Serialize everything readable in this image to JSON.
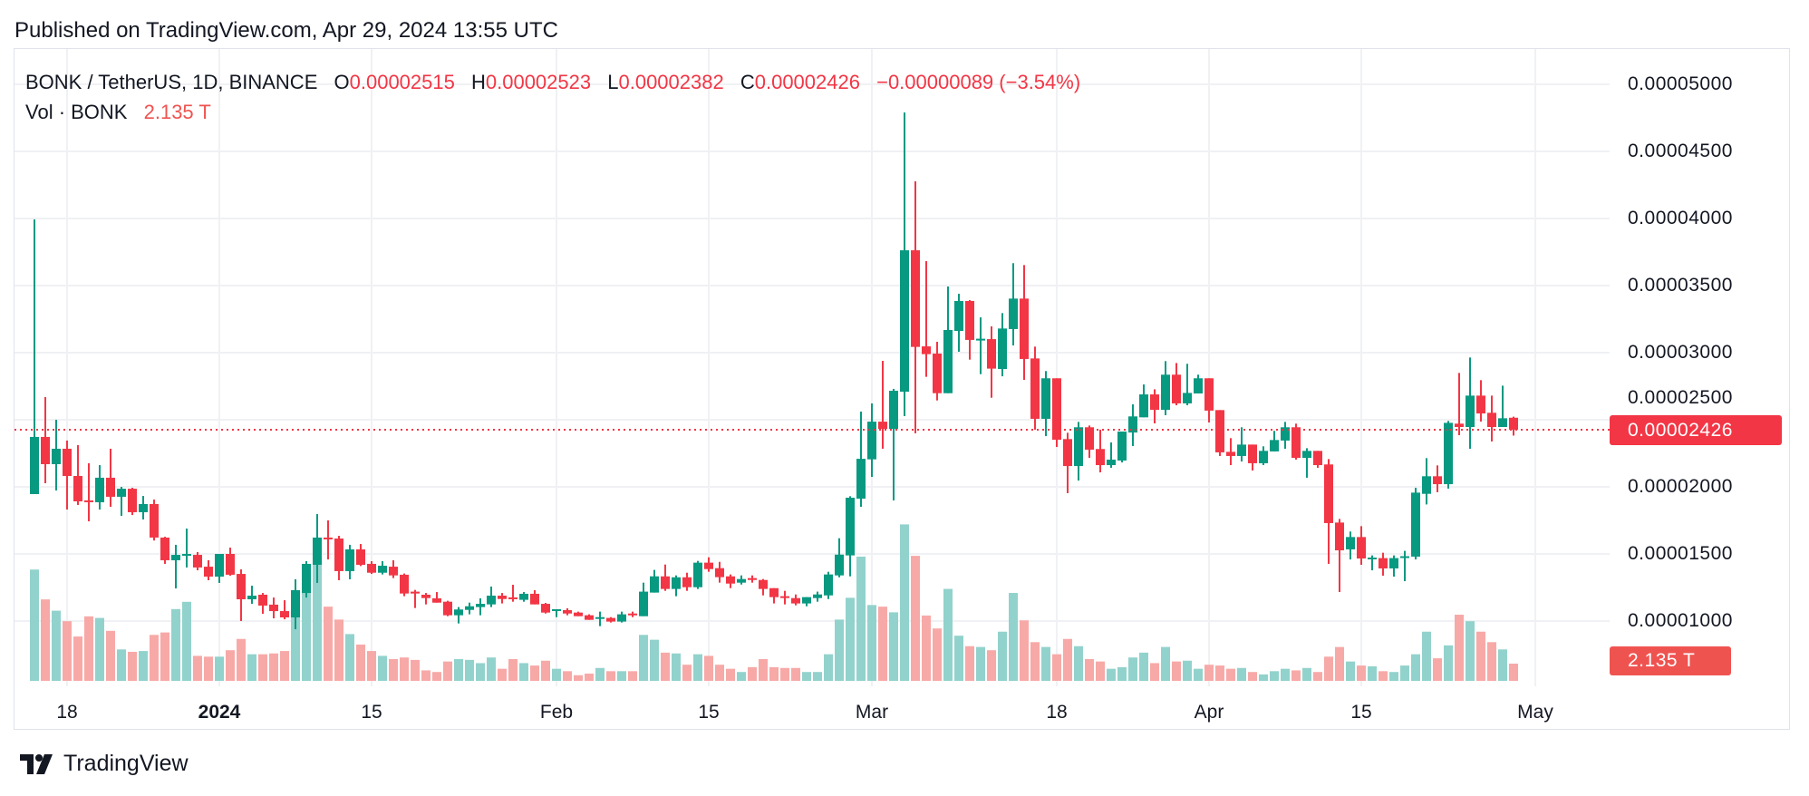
{
  "header": {
    "published": "Published on TradingView.com, Apr 29, 2024 13:55 UTC"
  },
  "legend": {
    "symbol": "BONK / TetherUS, 1D, BINANCE",
    "o_label": "O",
    "o_value": "0.00002515",
    "h_label": "H",
    "h_value": "0.00002523",
    "l_label": "L",
    "l_value": "0.00002382",
    "c_label": "C",
    "c_value": "0.00002426",
    "change": "−0.00000089 (−3.54%)",
    "vol_label": "Vol · BONK",
    "vol_value": "2.135 T"
  },
  "price_axis": {
    "labels": [
      "0.00005000",
      "0.00004500",
      "0.00004000",
      "0.00003500",
      "0.00003000",
      "0.00002500",
      "0.00002000",
      "0.00001500",
      "0.00001000"
    ],
    "last_price": "0.00002426",
    "last_volume": "2.135 T"
  },
  "time_axis": {
    "labels": [
      "18",
      "2024",
      "15",
      "Feb",
      "15",
      "Mar",
      "18",
      "Apr",
      "15",
      "May"
    ]
  },
  "footer": {
    "brand": "TradingView",
    "logo_icon": "tradingview-logo-icon"
  },
  "colors": {
    "up": "#089981",
    "down": "#F23645",
    "vol_up": "#92D2CC",
    "vol_down": "#F7A9A7",
    "grid": "#F0F1F4"
  },
  "chart_data": {
    "type": "candlestick",
    "interval": "1D",
    "symbol": "BONK / TetherUS",
    "exchange": "BINANCE",
    "ylim": [
      8.8e-06,
      5.25e-05
    ],
    "yticks": [
      1e-05,
      1.5e-05,
      2e-05,
      2.5e-05,
      3e-05,
      3.5e-05,
      4e-05,
      4.5e-05,
      5e-05
    ],
    "grid": true,
    "last_price": 2.426e-05,
    "volume_unit": "T",
    "dates": [
      "2023-12-15",
      "2023-12-16",
      "2023-12-17",
      "2023-12-18",
      "2023-12-19",
      "2023-12-20",
      "2023-12-21",
      "2023-12-22",
      "2023-12-23",
      "2023-12-24",
      "2023-12-25",
      "2023-12-26",
      "2023-12-27",
      "2023-12-28",
      "2023-12-29",
      "2023-12-30",
      "2023-12-31",
      "2024-01-01",
      "2024-01-02",
      "2024-01-03",
      "2024-01-04",
      "2024-01-05",
      "2024-01-06",
      "2024-01-07",
      "2024-01-08",
      "2024-01-09",
      "2024-01-10",
      "2024-01-11",
      "2024-01-12",
      "2024-01-13",
      "2024-01-14",
      "2024-01-15",
      "2024-01-16",
      "2024-01-17",
      "2024-01-18",
      "2024-01-19",
      "2024-01-20",
      "2024-01-21",
      "2024-01-22",
      "2024-01-23",
      "2024-01-24",
      "2024-01-25",
      "2024-01-26",
      "2024-01-27",
      "2024-01-28",
      "2024-01-29",
      "2024-01-30",
      "2024-01-31",
      "2024-02-01",
      "2024-02-02",
      "2024-02-03",
      "2024-02-04",
      "2024-02-05",
      "2024-02-06",
      "2024-02-07",
      "2024-02-08",
      "2024-02-09",
      "2024-02-10",
      "2024-02-11",
      "2024-02-12",
      "2024-02-13",
      "2024-02-14",
      "2024-02-15",
      "2024-02-16",
      "2024-02-17",
      "2024-02-18",
      "2024-02-19",
      "2024-02-20",
      "2024-02-21",
      "2024-02-22",
      "2024-02-23",
      "2024-02-24",
      "2024-02-25",
      "2024-02-26",
      "2024-02-27",
      "2024-02-28",
      "2024-02-29",
      "2024-03-01",
      "2024-03-02",
      "2024-03-03",
      "2024-03-04",
      "2024-03-05",
      "2024-03-06",
      "2024-03-07",
      "2024-03-08",
      "2024-03-09",
      "2024-03-10",
      "2024-03-11",
      "2024-03-12",
      "2024-03-13",
      "2024-03-14",
      "2024-03-15",
      "2024-03-16",
      "2024-03-17",
      "2024-03-18",
      "2024-03-19",
      "2024-03-20",
      "2024-03-21",
      "2024-03-22",
      "2024-03-23",
      "2024-03-24",
      "2024-03-25",
      "2024-03-26",
      "2024-03-27",
      "2024-03-28",
      "2024-03-29",
      "2024-03-30",
      "2024-03-31",
      "2024-04-01",
      "2024-04-02",
      "2024-04-03",
      "2024-04-04",
      "2024-04-05",
      "2024-04-06",
      "2024-04-07",
      "2024-04-08",
      "2024-04-09",
      "2024-04-10",
      "2024-04-11",
      "2024-04-12",
      "2024-04-13",
      "2024-04-14",
      "2024-04-15",
      "2024-04-16",
      "2024-04-17",
      "2024-04-18",
      "2024-04-19",
      "2024-04-20",
      "2024-04-21",
      "2024-04-22",
      "2024-04-23",
      "2024-04-24",
      "2024-04-25",
      "2024-04-26",
      "2024-04-27",
      "2024-04-28",
      "2024-04-29"
    ],
    "ohlc": [
      [
        1.946e-05,
        3.993e-05,
        1.946e-05,
        2.372e-05
      ],
      [
        2.372e-05,
        2.669e-05,
        2.027e-05,
        2.169e-05
      ],
      [
        2.169e-05,
        2.5e-05,
        1.973e-05,
        2.284e-05
      ],
      [
        2.284e-05,
        2.345e-05,
        1.831e-05,
        2.081e-05
      ],
      [
        2.081e-05,
        2.311e-05,
        1.865e-05,
        1.892e-05
      ],
      [
        1.899e-05,
        2.176e-05,
        1.743e-05,
        1.892e-05
      ],
      [
        1.885e-05,
        2.162e-05,
        1.831e-05,
        2.068e-05
      ],
      [
        2.068e-05,
        2.284e-05,
        1.851e-05,
        1.926e-05
      ],
      [
        1.926e-05,
        2e-05,
        1.784e-05,
        1.986e-05
      ],
      [
        1.986e-05,
        1.993e-05,
        1.79e-05,
        1.811e-05
      ],
      [
        1.811e-05,
        1.932e-05,
        1.757e-05,
        1.872e-05
      ],
      [
        1.872e-05,
        1.905e-05,
        1.6e-05,
        1.622e-05
      ],
      [
        1.622e-05,
        1.628e-05,
        1.426e-05,
        1.453e-05
      ],
      [
        1.453e-05,
        1.568e-05,
        1.243e-05,
        1.493e-05
      ],
      [
        1.493e-05,
        1.689e-05,
        1.399e-05,
        1.5e-05
      ],
      [
        1.493e-05,
        1.514e-05,
        1.378e-05,
        1.399e-05
      ],
      [
        1.405e-05,
        1.453e-05,
        1.304e-05,
        1.331e-05
      ],
      [
        1.331e-05,
        1.5e-05,
        1.284e-05,
        1.5e-05
      ],
      [
        1.5e-05,
        1.547e-05,
        1.338e-05,
        1.345e-05
      ],
      [
        1.351e-05,
        1.385e-05,
        1e-05,
        1.162e-05
      ],
      [
        1.162e-05,
        1.263e-05,
        1.128e-05,
        1.189e-05
      ],
      [
        1.196e-05,
        1.209e-05,
        1.054e-05,
        1.115e-05
      ],
      [
        1.122e-05,
        1.175e-05,
        1.02e-05,
        1.074e-05
      ],
      [
        1.074e-05,
        1.155e-05,
        1.013e-05,
        1.027e-05
      ],
      [
        1.027e-05,
        1.311e-05,
        9.39e-06,
        1.23e-05
      ],
      [
        1.209e-05,
        1.446e-05,
        1.175e-05,
        1.426e-05
      ],
      [
        1.419e-05,
        1.797e-05,
        1.284e-05,
        1.622e-05
      ],
      [
        1.622e-05,
        1.75e-05,
        1.459e-05,
        1.615e-05
      ],
      [
        1.615e-05,
        1.635e-05,
        1.304e-05,
        1.372e-05
      ],
      [
        1.372e-05,
        1.568e-05,
        1.311e-05,
        1.534e-05
      ],
      [
        1.534e-05,
        1.574e-05,
        1.41e-05,
        1.419e-05
      ],
      [
        1.426e-05,
        1.446e-05,
        1.351e-05,
        1.36e-05
      ],
      [
        1.36e-05,
        1.446e-05,
        1.347e-05,
        1.412e-05
      ],
      [
        1.405e-05,
        1.453e-05,
        1.32e-05,
        1.34e-05
      ],
      [
        1.345e-05,
        1.354e-05,
        1.185e-05,
        1.205e-05
      ],
      [
        1.219e-05,
        1.232e-05,
        1.097e-05,
        1.205e-05
      ],
      [
        1.196e-05,
        1.209e-05,
        1.124e-05,
        1.171e-05
      ],
      [
        1.169e-05,
        1.216e-05,
        1.137e-05,
        1.137e-05
      ],
      [
        1.144e-05,
        1.151e-05,
        1.036e-05,
        1.043e-05
      ],
      [
        1.043e-05,
        1.104e-05,
        9.82e-06,
        1.086e-05
      ],
      [
        1.083e-05,
        1.137e-05,
        1.05e-05,
        1.11e-05
      ],
      [
        1.104e-05,
        1.169e-05,
        1.043e-05,
        1.128e-05
      ],
      [
        1.124e-05,
        1.257e-05,
        1.104e-05,
        1.189e-05
      ],
      [
        1.189e-05,
        1.209e-05,
        1.131e-05,
        1.164e-05
      ],
      [
        1.176e-05,
        1.27e-05,
        1.144e-05,
        1.164e-05
      ],
      [
        1.158e-05,
        1.216e-05,
        1.144e-05,
        1.203e-05
      ],
      [
        1.203e-05,
        1.23e-05,
        1.124e-05,
        1.124e-05
      ],
      [
        1.128e-05,
        1.135e-05,
        1.056e-05,
        1.063e-05
      ],
      [
        1.079e-05,
        1.088e-05,
        1.029e-05,
        1.088e-05
      ],
      [
        1.081e-05,
        1.095e-05,
        1.043e-05,
        1.056e-05
      ],
      [
        1.063e-05,
        1.07e-05,
        1.036e-05,
        1.036e-05
      ],
      [
        1.043e-05,
        1.05e-05,
        1.009e-05,
        1.009e-05
      ],
      [
        1.023e-05,
        1.07e-05,
        9.62e-06,
        1.029e-05
      ],
      [
        1.023e-05,
        1.029e-05,
        9.89e-06,
        9.96e-06
      ],
      [
        9.96e-06,
        1.07e-05,
        9.89e-06,
        1.05e-05
      ],
      [
        1.056e-05,
        1.07e-05,
        1.029e-05,
        1.043e-05
      ],
      [
        1.036e-05,
        1.286e-05,
        1.036e-05,
        1.219e-05
      ],
      [
        1.212e-05,
        1.381e-05,
        1.212e-05,
        1.333e-05
      ],
      [
        1.333e-05,
        1.421e-05,
        1.225e-05,
        1.239e-05
      ],
      [
        1.239e-05,
        1.34e-05,
        1.185e-05,
        1.326e-05
      ],
      [
        1.326e-05,
        1.36e-05,
        1.225e-05,
        1.252e-05
      ],
      [
        1.252e-05,
        1.448e-05,
        1.239e-05,
        1.435e-05
      ],
      [
        1.435e-05,
        1.475e-05,
        1.367e-05,
        1.387e-05
      ],
      [
        1.394e-05,
        1.441e-05,
        1.286e-05,
        1.327e-05
      ],
      [
        1.333e-05,
        1.347e-05,
        1.245e-05,
        1.279e-05
      ],
      [
        1.286e-05,
        1.34e-05,
        1.272e-05,
        1.313e-05
      ],
      [
        1.32e-05,
        1.34e-05,
        1.286e-05,
        1.306e-05
      ],
      [
        1.306e-05,
        1.313e-05,
        1.191e-05,
        1.239e-05
      ],
      [
        1.245e-05,
        1.245e-05,
        1.131e-05,
        1.178e-05
      ],
      [
        1.185e-05,
        1.225e-05,
        1.124e-05,
        1.178e-05
      ],
      [
        1.171e-05,
        1.198e-05,
        1.117e-05,
        1.131e-05
      ],
      [
        1.131e-05,
        1.178e-05,
        1.11e-05,
        1.178e-05
      ],
      [
        1.171e-05,
        1.219e-05,
        1.144e-05,
        1.198e-05
      ],
      [
        1.191e-05,
        1.367e-05,
        1.164e-05,
        1.347e-05
      ],
      [
        1.34e-05,
        1.617e-05,
        1.326e-05,
        1.495e-05
      ],
      [
        1.489e-05,
        1.93e-05,
        1.333e-05,
        1.919e-05
      ],
      [
        1.912e-05,
        2.561e-05,
        1.851e-05,
        2.209e-05
      ],
      [
        2.205e-05,
        2.622e-05,
        2.074e-05,
        2.486e-05
      ],
      [
        2.486e-05,
        2.939e-05,
        2.284e-05,
        2.432e-05
      ],
      [
        2.432e-05,
        2.73e-05,
        1.899e-05,
        2.716e-05
      ],
      [
        2.709e-05,
        4.79e-05,
        2.527e-05,
        3.763e-05
      ],
      [
        3.763e-05,
        4.277e-05,
        2.399e-05,
        3.043e-05
      ],
      [
        3.047e-05,
        3.682e-05,
        2.82e-05,
        2.989e-05
      ],
      [
        2.993e-05,
        3.081e-05,
        2.644e-05,
        2.698e-05
      ],
      [
        2.698e-05,
        3.493e-05,
        2.698e-05,
        3.169e-05
      ],
      [
        3.162e-05,
        3.439e-05,
        3.007e-05,
        3.385e-05
      ],
      [
        3.385e-05,
        3.392e-05,
        2.948e-05,
        3.095e-05
      ],
      [
        3.095e-05,
        3.263e-05,
        2.84e-05,
        3.104e-05
      ],
      [
        3.101e-05,
        3.196e-05,
        2.664e-05,
        2.881e-05
      ],
      [
        2.878e-05,
        3.295e-05,
        2.824e-05,
        3.18e-05
      ],
      [
        3.176e-05,
        3.667e-05,
        3.054e-05,
        3.403e-05
      ],
      [
        3.403e-05,
        3.653e-05,
        2.797e-05,
        2.953e-05
      ],
      [
        2.957e-05,
        3.045e-05,
        2.426e-05,
        2.507e-05
      ],
      [
        2.507e-05,
        2.863e-05,
        2.378e-05,
        2.809e-05
      ],
      [
        2.809e-05,
        2.809e-05,
        2.297e-05,
        2.351e-05
      ],
      [
        2.356e-05,
        2.403e-05,
        1.953e-05,
        2.155e-05
      ],
      [
        2.155e-05,
        2.484e-05,
        2.047e-05,
        2.444e-05
      ],
      [
        2.444e-05,
        2.457e-05,
        2.216e-05,
        2.277e-05
      ],
      [
        2.282e-05,
        2.426e-05,
        2.108e-05,
        2.162e-05
      ],
      [
        2.162e-05,
        2.331e-05,
        2.142e-05,
        2.203e-05
      ],
      [
        2.196e-05,
        2.412e-05,
        2.182e-05,
        2.412e-05
      ],
      [
        2.405e-05,
        2.615e-05,
        2.304e-05,
        2.525e-05
      ],
      [
        2.518e-05,
        2.763e-05,
        2.518e-05,
        2.689e-05
      ],
      [
        2.689e-05,
        2.727e-05,
        2.473e-05,
        2.574e-05
      ],
      [
        2.574e-05,
        2.937e-05,
        2.534e-05,
        2.836e-05
      ],
      [
        2.836e-05,
        2.923e-05,
        2.608e-05,
        2.622e-05
      ],
      [
        2.622e-05,
        2.917e-05,
        2.608e-05,
        2.7e-05
      ],
      [
        2.696e-05,
        2.836e-05,
        2.696e-05,
        2.809e-05
      ],
      [
        2.809e-05,
        2.809e-05,
        2.48e-05,
        2.568e-05
      ],
      [
        2.572e-05,
        2.572e-05,
        2.23e-05,
        2.257e-05
      ],
      [
        2.261e-05,
        2.363e-05,
        2.162e-05,
        2.23e-05
      ],
      [
        2.23e-05,
        2.444e-05,
        2.189e-05,
        2.315e-05
      ],
      [
        2.315e-05,
        2.315e-05,
        2.122e-05,
        2.176e-05
      ],
      [
        2.176e-05,
        2.302e-05,
        2.162e-05,
        2.268e-05
      ],
      [
        2.264e-05,
        2.417e-05,
        2.264e-05,
        2.349e-05
      ],
      [
        2.345e-05,
        2.484e-05,
        2.284e-05,
        2.444e-05
      ],
      [
        2.444e-05,
        2.471e-05,
        2.203e-05,
        2.216e-05
      ],
      [
        2.216e-05,
        2.288e-05,
        2.068e-05,
        2.268e-05
      ],
      [
        2.268e-05,
        2.268e-05,
        2.142e-05,
        2.162e-05
      ],
      [
        2.167e-05,
        2.207e-05,
        1.426e-05,
        1.73e-05
      ],
      [
        1.734e-05,
        1.761e-05,
        1.216e-05,
        1.527e-05
      ],
      [
        1.534e-05,
        1.667e-05,
        1.459e-05,
        1.626e-05
      ],
      [
        1.626e-05,
        1.707e-05,
        1.419e-05,
        1.466e-05
      ],
      [
        1.466e-05,
        1.489e-05,
        1.378e-05,
        1.473e-05
      ],
      [
        1.469e-05,
        1.509e-05,
        1.338e-05,
        1.392e-05
      ],
      [
        1.392e-05,
        1.489e-05,
        1.331e-05,
        1.469e-05
      ],
      [
        1.476e-05,
        1.523e-05,
        1.297e-05,
        1.483e-05
      ],
      [
        1.48e-05,
        1.993e-05,
        1.459e-05,
        1.957e-05
      ],
      [
        1.948e-05,
        2.214e-05,
        1.869e-05,
        2.079e-05
      ],
      [
        2.079e-05,
        2.16e-05,
        1.96e-05,
        2.02e-05
      ],
      [
        2.02e-05,
        2.491e-05,
        1.987e-05,
        2.477e-05
      ],
      [
        2.471e-05,
        2.849e-05,
        2.385e-05,
        2.446e-05
      ],
      [
        2.446e-05,
        2.964e-05,
        2.284e-05,
        2.68e-05
      ],
      [
        2.68e-05,
        2.795e-05,
        2.486e-05,
        2.547e-05
      ],
      [
        2.552e-05,
        2.68e-05,
        2.338e-05,
        2.446e-05
      ],
      [
        2.446e-05,
        2.754e-05,
        2.446e-05,
        2.511e-05
      ],
      [
        2.515e-05,
        2.523e-05,
        2.382e-05,
        2.426e-05
      ]
    ],
    "volume": [
      13.8,
      10.1,
      8.7,
      7.4,
      5.5,
      8.0,
      7.8,
      6.2,
      3.9,
      3.6,
      3.7,
      5.7,
      6.0,
      8.9,
      9.8,
      3.1,
      3.0,
      3.0,
      3.8,
      5.2,
      3.3,
      3.3,
      3.4,
      3.7,
      7.9,
      12.5,
      15.8,
      9.2,
      7.6,
      5.8,
      4.5,
      3.7,
      3.1,
      2.7,
      2.9,
      2.6,
      1.3,
      1.1,
      2.4,
      2.7,
      2.6,
      2.2,
      2.9,
      1.5,
      2.7,
      2.2,
      1.9,
      2.5,
      1.5,
      1.2,
      0.7,
      0.9,
      1.6,
      1.2,
      1.2,
      1.2,
      5.7,
      5.1,
      3.5,
      3.4,
      2.0,
      3.3,
      3.1,
      2.0,
      1.5,
      1.1,
      1.7,
      2.7,
      1.7,
      1.6,
      1.6,
      1.1,
      1.1,
      3.3,
      7.6,
      10.3,
      15.4,
      9.4,
      9.2,
      8.5,
      19.4,
      15.5,
      8.1,
      6.5,
      11.4,
      5.6,
      4.3,
      4.2,
      3.8,
      6.1,
      10.9,
      7.5,
      4.8,
      4.2,
      3.3,
      5.2,
      4.3,
      2.7,
      2.4,
      1.5,
      1.7,
      2.9,
      3.5,
      2.2,
      4.2,
      2.4,
      2.5,
      1.5,
      2.0,
      1.9,
      1.5,
      1.6,
      1.1,
      0.8,
      1.2,
      1.5,
      1.3,
      1.6,
      1.1,
      3.0,
      4.2,
      2.4,
      1.9,
      1.8,
      1.2,
      1.1,
      1.9,
      3.3,
      6.1,
      2.8,
      4.4,
      8.2,
      7.4,
      6.1,
      4.8,
      3.9,
      2.135
    ]
  }
}
